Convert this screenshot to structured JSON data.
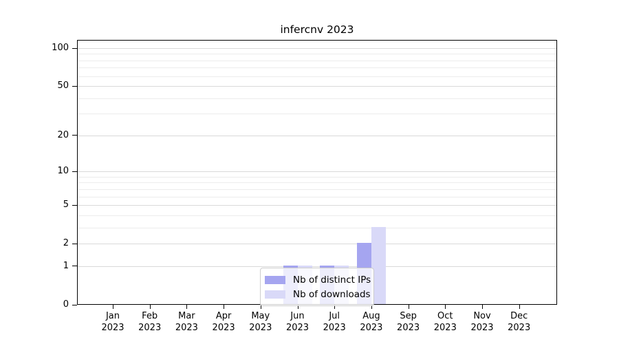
{
  "chart_data": {
    "type": "bar",
    "title": "infercnv 2023",
    "categories": [
      "Jan",
      "Feb",
      "Mar",
      "Apr",
      "May",
      "Jun",
      "Jul",
      "Aug",
      "Sep",
      "Oct",
      "Nov",
      "Dec"
    ],
    "category_year": "2023",
    "series": [
      {
        "name": "Nb of distinct IPs",
        "color": "#a5a5f0",
        "values": [
          0,
          0,
          0,
          0,
          0,
          1,
          1,
          2,
          0,
          0,
          0,
          0
        ]
      },
      {
        "name": "Nb of downloads",
        "color": "#d9d9f8",
        "values": [
          0,
          0,
          0,
          0,
          0,
          1,
          1,
          3,
          0,
          0,
          0,
          0
        ]
      }
    ],
    "xlabel": "",
    "ylabel": "",
    "yscale": "log1p",
    "yticks": [
      0,
      1,
      2,
      5,
      10,
      20,
      50,
      100
    ],
    "minor_gridlines": [
      3,
      4,
      6,
      7,
      8,
      9,
      30,
      40,
      60,
      70,
      80,
      90
    ],
    "ylim": [
      0,
      117
    ],
    "grid": true,
    "legend_position": "lower center",
    "colors": {
      "axis": "#000000",
      "major_grid": "#d9d9d9",
      "minor_grid": "#ececec",
      "background": "#ffffff"
    }
  }
}
